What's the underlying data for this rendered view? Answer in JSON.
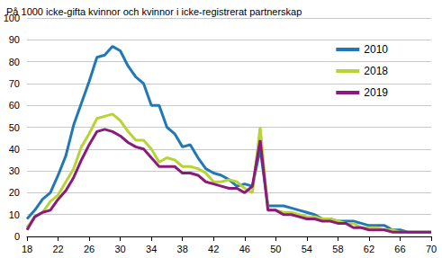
{
  "chart_data": {
    "type": "line",
    "title": "På 1000 icke-gifta kvinnor och kvinnor i icke-registrerat partnerskap",
    "x": [
      18,
      19,
      20,
      21,
      22,
      23,
      24,
      25,
      26,
      27,
      28,
      29,
      30,
      31,
      32,
      33,
      34,
      35,
      36,
      37,
      38,
      39,
      40,
      41,
      42,
      43,
      44,
      45,
      46,
      47,
      48,
      49,
      50,
      51,
      52,
      53,
      54,
      55,
      56,
      57,
      58,
      59,
      60,
      61,
      62,
      63,
      64,
      65,
      66,
      67,
      68,
      69,
      70
    ],
    "series": [
      {
        "name": "2010",
        "color": "#2178b4",
        "values": [
          8,
          12,
          17,
          20,
          28,
          37,
          51,
          61,
          71,
          82,
          83,
          87,
          85,
          78,
          73,
          70,
          60,
          60,
          50,
          47,
          41,
          42,
          36,
          31,
          29,
          28,
          26,
          23,
          24,
          23,
          40,
          14,
          14,
          14,
          13,
          12,
          11,
          10,
          8,
          8,
          7,
          7,
          7,
          6,
          5,
          5,
          5,
          3,
          3,
          2,
          2,
          2,
          2
        ]
      },
      {
        "name": "2018",
        "color": "#b7d334",
        "values": [
          4,
          9,
          11,
          16,
          19,
          25,
          31,
          41,
          47,
          54,
          55,
          56,
          53,
          48,
          44,
          44,
          40,
          34,
          36,
          35,
          32,
          32,
          31,
          29,
          25,
          25,
          26,
          25,
          22,
          20,
          50,
          12,
          12,
          11,
          11,
          10,
          9,
          9,
          8,
          8,
          7,
          6,
          6,
          4,
          4,
          4,
          3,
          3,
          2,
          2,
          2,
          2,
          2
        ]
      },
      {
        "name": "2019",
        "color": "#8b1a7c",
        "values": [
          3,
          9,
          11,
          12,
          17,
          21,
          27,
          35,
          42,
          48,
          49,
          48,
          46,
          43,
          41,
          40,
          36,
          32,
          32,
          32,
          29,
          29,
          28,
          25,
          24,
          23,
          22,
          22,
          20,
          23,
          44,
          12,
          12,
          10,
          10,
          9,
          8,
          8,
          7,
          7,
          6,
          6,
          4,
          4,
          3,
          3,
          3,
          2,
          2,
          2,
          2,
          2,
          2
        ]
      }
    ],
    "xlim": [
      18,
      70
    ],
    "xticks": [
      18,
      22,
      26,
      30,
      34,
      38,
      42,
      46,
      50,
      54,
      58,
      62,
      66,
      70
    ],
    "ylim": [
      0,
      100
    ],
    "yticks": [
      0,
      10,
      20,
      30,
      40,
      50,
      60,
      70,
      80,
      90,
      100
    ],
    "grid": true,
    "legend": "upper right"
  }
}
